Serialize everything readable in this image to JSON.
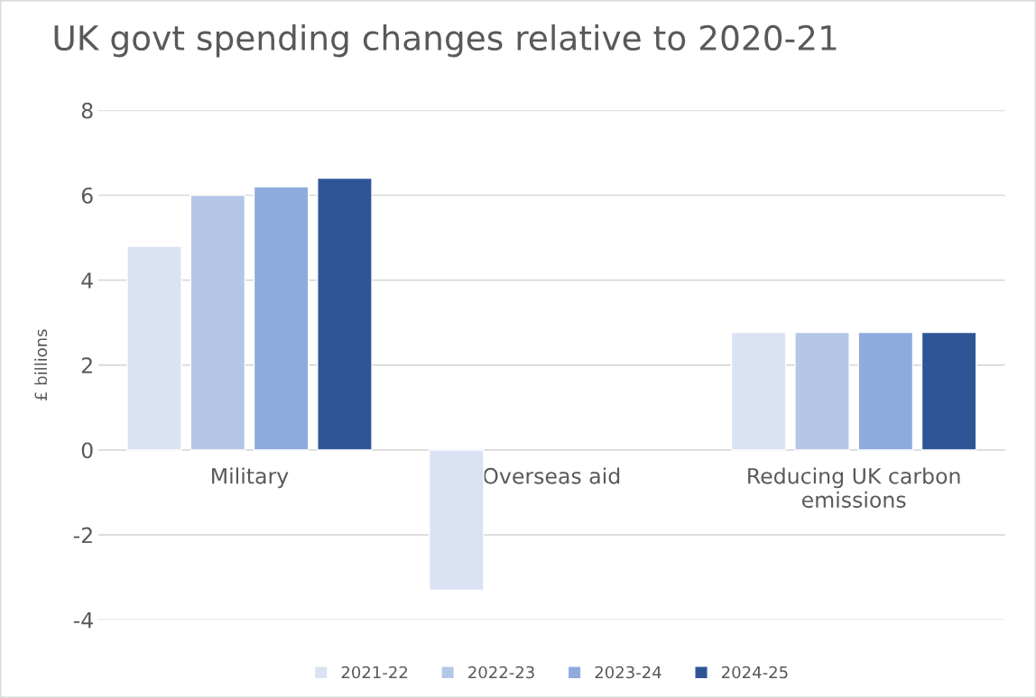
{
  "chart_data": {
    "type": "bar",
    "title": "UK govt spending changes relative to 2020-21",
    "ylabel": "£ billions",
    "categories": [
      "Military",
      "Overseas aid",
      "Reducing UK carbon\nemissions"
    ],
    "series": [
      {
        "name": "2021-22",
        "color": "#dae3f3",
        "values": [
          4.8,
          -3.3,
          2.77
        ]
      },
      {
        "name": "2022-23",
        "color": "#b4c7e7",
        "values": [
          6.0,
          null,
          2.77
        ]
      },
      {
        "name": "2023-24",
        "color": "#8faadc",
        "values": [
          6.2,
          null,
          2.77
        ]
      },
      {
        "name": "2024-25",
        "color": "#2f5597",
        "values": [
          6.4,
          null,
          2.77
        ]
      }
    ],
    "ylim": [
      -4,
      8
    ],
    "yticks": [
      -4,
      -2,
      0,
      2,
      4,
      6,
      8
    ],
    "grid": "y",
    "legend": "bottom"
  }
}
